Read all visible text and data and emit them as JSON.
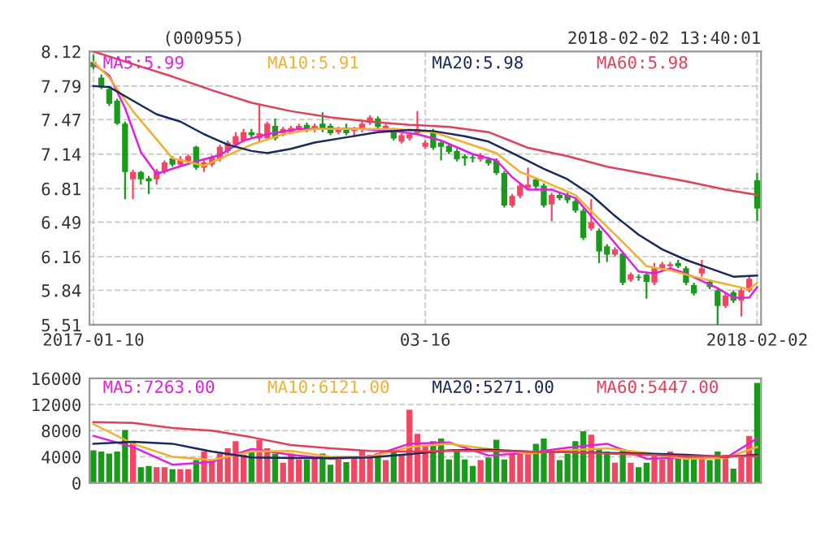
{
  "chart_data": [
    {
      "type": "candlestick",
      "title": "(000955)",
      "annotations": [
        "2018-02-02 13:40:01"
      ],
      "categories": [
        "2017-01-10",
        null,
        null,
        null,
        null,
        null,
        null,
        null,
        null,
        null,
        null,
        null,
        null,
        null,
        null,
        null,
        null,
        null,
        null,
        null,
        null,
        null,
        null,
        null,
        null,
        null,
        null,
        null,
        null,
        null,
        null,
        null,
        null,
        null,
        null,
        null,
        null,
        null,
        null,
        null,
        null,
        null,
        "03-16",
        null,
        null,
        null,
        null,
        null,
        null,
        null,
        null,
        null,
        null,
        null,
        null,
        null,
        null,
        null,
        null,
        null,
        null,
        null,
        null,
        null,
        null,
        null,
        null,
        null,
        null,
        null,
        null,
        null,
        null,
        null,
        null,
        null,
        null,
        null,
        null,
        null,
        null,
        null,
        null,
        null,
        "2018-02-02"
      ],
      "ohlc": [
        [
          8.02,
          8.09,
          7.95,
          7.97
        ],
        [
          7.87,
          7.9,
          7.76,
          7.78
        ],
        [
          7.76,
          7.78,
          7.6,
          7.62
        ],
        [
          7.65,
          7.67,
          7.42,
          7.43
        ],
        [
          7.43,
          7.45,
          6.71,
          6.97
        ],
        [
          6.9,
          6.99,
          6.71,
          6.97
        ],
        [
          6.97,
          6.98,
          6.85,
          6.9
        ],
        [
          6.91,
          6.93,
          6.76,
          6.88
        ],
        [
          6.9,
          7.0,
          6.85,
          6.98
        ],
        [
          6.97,
          7.08,
          6.95,
          7.06
        ],
        [
          7.1,
          7.12,
          7.02,
          7.04
        ],
        [
          7.04,
          7.12,
          7.02,
          7.09
        ],
        [
          7.07,
          7.14,
          7.05,
          7.12
        ],
        [
          7.21,
          7.22,
          6.99,
          7.01
        ],
        [
          7.01,
          7.08,
          6.97,
          7.06
        ],
        [
          7.04,
          7.13,
          7.02,
          7.11
        ],
        [
          7.09,
          7.23,
          7.07,
          7.21
        ],
        [
          7.17,
          7.27,
          7.15,
          7.25
        ],
        [
          7.23,
          7.35,
          7.21,
          7.31
        ],
        [
          7.27,
          7.38,
          7.25,
          7.35
        ],
        [
          7.35,
          7.38,
          7.3,
          7.32
        ],
        [
          7.29,
          7.62,
          7.25,
          7.34
        ],
        [
          7.29,
          7.45,
          7.27,
          7.43
        ],
        [
          7.41,
          7.48,
          7.27,
          7.29
        ],
        [
          7.34,
          7.4,
          7.31,
          7.38
        ],
        [
          7.35,
          7.41,
          7.33,
          7.39
        ],
        [
          7.37,
          7.43,
          7.35,
          7.41
        ],
        [
          7.42,
          7.44,
          7.35,
          7.37
        ],
        [
          7.37,
          7.43,
          7.35,
          7.41
        ],
        [
          7.43,
          7.54,
          7.35,
          7.38
        ],
        [
          7.41,
          7.43,
          7.32,
          7.34
        ],
        [
          7.35,
          7.4,
          7.33,
          7.38
        ],
        [
          7.39,
          7.43,
          7.32,
          7.34
        ],
        [
          7.36,
          7.4,
          7.3,
          7.38
        ],
        [
          7.37,
          7.45,
          7.35,
          7.43
        ],
        [
          7.44,
          7.51,
          7.42,
          7.49
        ],
        [
          7.48,
          7.5,
          7.38,
          7.4
        ],
        [
          7.37,
          7.43,
          7.35,
          7.41
        ],
        [
          7.37,
          7.39,
          7.27,
          7.29
        ],
        [
          7.26,
          7.34,
          7.24,
          7.32
        ],
        [
          7.29,
          7.34,
          7.27,
          7.33
        ],
        [
          7.34,
          7.55,
          7.32,
          7.38
        ],
        [
          7.21,
          7.27,
          7.19,
          7.25
        ],
        [
          7.36,
          7.38,
          7.18,
          7.2
        ],
        [
          7.25,
          7.27,
          7.08,
          7.21
        ],
        [
          7.22,
          7.24,
          7.14,
          7.16
        ],
        [
          7.17,
          7.19,
          7.07,
          7.09
        ],
        [
          7.12,
          7.14,
          7.03,
          7.1
        ],
        [
          7.11,
          7.13,
          7.06,
          7.1
        ],
        [
          7.09,
          7.15,
          7.07,
          7.13
        ],
        [
          7.09,
          7.11,
          7.03,
          7.05
        ],
        [
          7.08,
          7.1,
          6.94,
          6.96
        ],
        [
          6.96,
          6.98,
          6.63,
          6.65
        ],
        [
          6.65,
          6.76,
          6.63,
          6.74
        ],
        [
          6.74,
          6.86,
          6.72,
          6.84
        ],
        [
          6.82,
          7.01,
          6.8,
          6.85
        ],
        [
          6.9,
          6.92,
          6.8,
          6.83
        ],
        [
          6.84,
          6.86,
          6.63,
          6.65
        ],
        [
          6.66,
          6.77,
          6.5,
          6.75
        ],
        [
          6.75,
          6.77,
          6.7,
          6.72
        ],
        [
          6.75,
          6.77,
          6.67,
          6.7
        ],
        [
          6.69,
          6.71,
          6.58,
          6.6
        ],
        [
          6.6,
          6.62,
          6.32,
          6.34
        ],
        [
          6.43,
          6.71,
          6.41,
          6.49
        ],
        [
          6.41,
          6.43,
          6.1,
          6.21
        ],
        [
          6.26,
          6.28,
          6.11,
          6.18
        ],
        [
          6.18,
          6.25,
          6.16,
          6.23
        ],
        [
          6.19,
          6.21,
          5.89,
          5.91
        ],
        [
          5.94,
          6.01,
          5.92,
          5.99
        ],
        [
          5.97,
          5.99,
          5.93,
          5.96
        ],
        [
          5.99,
          6.01,
          5.76,
          5.92
        ],
        [
          5.91,
          6.1,
          5.89,
          6.05
        ],
        [
          6.05,
          6.11,
          6.03,
          6.09
        ],
        [
          6.07,
          6.11,
          6.04,
          6.09
        ],
        [
          6.1,
          6.13,
          6.05,
          6.07
        ],
        [
          6.05,
          6.07,
          5.89,
          5.91
        ],
        [
          5.89,
          5.91,
          5.79,
          5.81
        ],
        [
          6.0,
          6.13,
          5.97,
          6.05
        ],
        [
          5.92,
          5.94,
          5.85,
          5.87
        ],
        [
          5.84,
          5.86,
          5.51,
          5.69
        ],
        [
          5.69,
          5.81,
          5.67,
          5.79
        ],
        [
          5.82,
          5.84,
          5.72,
          5.74
        ],
        [
          5.74,
          5.86,
          5.59,
          5.84
        ],
        [
          5.84,
          5.97,
          5.82,
          5.95
        ],
        [
          6.89,
          6.96,
          6.5,
          6.62
        ]
      ],
      "colors": [
        "#1a9a1a",
        "#1a9a1a",
        "#1a9a1a",
        "#1a9a1a",
        "#1a9a1a",
        "#f04864",
        "#1a9a1a",
        "#1a9a1a",
        "#f04864",
        "#f04864",
        "#1a9a1a",
        "#f04864",
        "#f04864",
        "#1a9a1a",
        "#f04864",
        "#f04864",
        "#f04864",
        "#f04864",
        "#f04864",
        "#f04864",
        "#1a9a1a",
        "#f04864",
        "#f04864",
        "#1a9a1a",
        "#f04864",
        "#f04864",
        "#f04864",
        "#1a9a1a",
        "#f04864",
        "#1a9a1a",
        "#1a9a1a",
        "#f04864",
        "#1a9a1a",
        "#f04864",
        "#f04864",
        "#f04864",
        "#1a9a1a",
        "#f04864",
        "#1a9a1a",
        "#f04864",
        "#f04864",
        "#f04864",
        "#f04864",
        "#1a9a1a",
        "#1a9a1a",
        "#1a9a1a",
        "#1a9a1a",
        "#1a9a1a",
        "#1a9a1a",
        "#f04864",
        "#1a9a1a",
        "#1a9a1a",
        "#1a9a1a",
        "#f04864",
        "#f04864",
        "#f04864",
        "#1a9a1a",
        "#1a9a1a",
        "#f04864",
        "#1a9a1a",
        "#1a9a1a",
        "#1a9a1a",
        "#1a9a1a",
        "#f04864",
        "#1a9a1a",
        "#1a9a1a",
        "#f04864",
        "#1a9a1a",
        "#f04864",
        "#1a9a1a",
        "#1a9a1a",
        "#f04864",
        "#f04864",
        "#f04864",
        "#1a9a1a",
        "#1a9a1a",
        "#1a9a1a",
        "#f04864",
        "#1a9a1a",
        "#1a9a1a",
        "#f04864",
        "#1a9a1a",
        "#f04864",
        "#f04864",
        "#1a9a1a"
      ],
      "ylim": [
        5.51,
        8.12
      ],
      "yticks": [
        5.51,
        5.84,
        6.16,
        6.49,
        6.81,
        7.14,
        7.47,
        7.79,
        8.12
      ],
      "grid": true,
      "series": [
        {
          "name": "MA5:5.99",
          "type": "line",
          "color": "#e020e0",
          "values": [
            8.0,
            null,
            7.89,
            null,
            7.58,
            null,
            7.16,
            null,
            6.95,
            null,
            7.0,
            null,
            null,
            7.07,
            null,
            null,
            7.13,
            null,
            null,
            7.27,
            null,
            null,
            7.33,
            null,
            null,
            null,
            7.38,
            null,
            null,
            null,
            7.38,
            null,
            null,
            null,
            7.38,
            null,
            null,
            null,
            7.36,
            null,
            null,
            7.33,
            null,
            null,
            7.27,
            null,
            null,
            null,
            7.14,
            null,
            null,
            7.08,
            null,
            6.92,
            null,
            6.8,
            null,
            null,
            6.8,
            null,
            null,
            6.72,
            null,
            6.55,
            null,
            6.38,
            null,
            6.2,
            null,
            6.02,
            null,
            6.0,
            null,
            6.05,
            null,
            6.0,
            null,
            5.93,
            null,
            5.86,
            null,
            5.77,
            null,
            5.77,
            5.87
          ]
        },
        {
          "name": "MA10:5.91",
          "type": "line",
          "color": "#f0b030",
          "values": [
            8.02,
            null,
            7.87,
            null,
            null,
            7.55,
            null,
            null,
            null,
            null,
            7.1,
            null,
            null,
            null,
            7.03,
            null,
            null,
            7.13,
            null,
            null,
            7.23,
            null,
            null,
            null,
            7.33,
            null,
            null,
            null,
            7.38,
            null,
            null,
            null,
            null,
            7.38,
            null,
            null,
            null,
            null,
            7.38,
            null,
            null,
            null,
            null,
            7.35,
            null,
            null,
            null,
            7.25,
            null,
            null,
            null,
            7.15,
            null,
            null,
            6.97,
            null,
            null,
            6.88,
            null,
            null,
            null,
            6.75,
            null,
            null,
            6.52,
            null,
            null,
            6.3,
            null,
            null,
            6.07,
            null,
            null,
            6.03,
            null,
            null,
            5.97,
            null,
            null,
            null,
            5.9,
            null,
            null,
            5.85,
            5.91
          ]
        },
        {
          "name": "MA20:5.98",
          "type": "line",
          "color": "#1a2a5a",
          "values": [
            7.79,
            null,
            7.78,
            null,
            null,
            7.65,
            null,
            null,
            7.52,
            null,
            null,
            7.45,
            null,
            null,
            7.33,
            null,
            null,
            7.23,
            null,
            null,
            7.17,
            null,
            7.15,
            null,
            null,
            7.19,
            null,
            null,
            7.25,
            null,
            null,
            null,
            7.3,
            null,
            null,
            null,
            7.35,
            null,
            null,
            null,
            7.37,
            null,
            null,
            7.36,
            null,
            null,
            null,
            7.31,
            null,
            null,
            7.26,
            null,
            null,
            7.15,
            null,
            null,
            null,
            7.0,
            null,
            null,
            6.9,
            null,
            null,
            6.75,
            null,
            null,
            6.55,
            null,
            null,
            6.37,
            null,
            null,
            6.23,
            null,
            null,
            6.13,
            null,
            null,
            6.05,
            null,
            null,
            5.97,
            null,
            null,
            5.98
          ]
        },
        {
          "name": "MA60:5.98",
          "type": "line",
          "color": "#e0405a",
          "values": [
            8.12,
            null,
            null,
            null,
            null,
            8.0,
            null,
            null,
            null,
            null,
            7.88,
            null,
            null,
            null,
            null,
            7.75,
            null,
            null,
            null,
            null,
            7.63,
            null,
            null,
            null,
            null,
            7.55,
            null,
            null,
            null,
            null,
            7.49,
            null,
            null,
            null,
            null,
            7.45,
            null,
            null,
            null,
            null,
            7.42,
            null,
            null,
            null,
            null,
            7.4,
            null,
            null,
            null,
            null,
            7.35,
            null,
            null,
            null,
            null,
            7.2,
            null,
            null,
            null,
            null,
            7.12,
            null,
            null,
            null,
            null,
            7.02,
            null,
            null,
            null,
            null,
            6.95,
            null,
            null,
            null,
            null,
            6.88,
            null,
            null,
            null,
            null,
            6.8,
            null,
            null,
            null,
            6.75
          ]
        }
      ]
    },
    {
      "type": "bar",
      "tick_labels": "y",
      "categories": [
        null,
        null,
        null,
        null,
        null,
        null,
        null,
        null,
        null,
        null,
        null,
        null,
        null,
        null,
        null,
        null,
        null,
        null,
        null,
        null,
        null,
        null,
        null,
        null,
        null,
        null,
        null,
        null,
        null,
        null,
        null,
        null,
        null,
        null,
        null,
        null,
        null,
        null,
        null,
        null,
        null,
        null,
        null,
        null,
        null,
        null,
        null,
        null,
        null,
        null,
        null,
        null,
        null,
        null,
        null,
        null,
        null,
        null,
        null,
        null,
        null,
        null,
        null,
        null,
        null,
        null,
        null,
        null,
        null,
        null,
        null,
        null,
        null,
        null,
        null,
        null,
        null,
        null,
        null,
        null,
        null,
        null,
        null,
        null,
        null
      ],
      "values": [
        5000,
        4800,
        4500,
        4800,
        8100,
        6400,
        2400,
        2600,
        2400,
        2400,
        2100,
        2100,
        2100,
        3500,
        4800,
        3600,
        4500,
        5300,
        6400,
        4300,
        5000,
        6600,
        5300,
        4500,
        3100,
        4500,
        3600,
        3600,
        3900,
        4500,
        2800,
        3600,
        3200,
        3900,
        5000,
        4300,
        4500,
        3500,
        4800,
        4300,
        11200,
        7500,
        5600,
        6400,
        6800,
        3600,
        5000,
        3600,
        2600,
        3500,
        3900,
        6600,
        3600,
        4500,
        4500,
        4500,
        6000,
        6800,
        5000,
        3500,
        4500,
        6400,
        7900,
        7400,
        5300,
        4800,
        3100,
        5200,
        3100,
        2400,
        3100,
        4100,
        3600,
        4800,
        4100,
        3800,
        4100,
        4300,
        3500,
        4800,
        4300,
        2200,
        4100,
        7200,
        15300
      ],
      "colors": [
        "#1a9a1a",
        "#1a9a1a",
        "#1a9a1a",
        "#1a9a1a",
        "#1a9a1a",
        "#f04864",
        "#1a9a1a",
        "#1a9a1a",
        "#f04864",
        "#f04864",
        "#1a9a1a",
        "#f04864",
        "#f04864",
        "#1a9a1a",
        "#f04864",
        "#f04864",
        "#f04864",
        "#f04864",
        "#f04864",
        "#f04864",
        "#1a9a1a",
        "#f04864",
        "#f04864",
        "#1a9a1a",
        "#f04864",
        "#f04864",
        "#f04864",
        "#1a9a1a",
        "#f04864",
        "#1a9a1a",
        "#1a9a1a",
        "#f04864",
        "#1a9a1a",
        "#f04864",
        "#f04864",
        "#f04864",
        "#1a9a1a",
        "#f04864",
        "#1a9a1a",
        "#f04864",
        "#f04864",
        "#f04864",
        "#f04864",
        "#1a9a1a",
        "#1a9a1a",
        "#1a9a1a",
        "#1a9a1a",
        "#1a9a1a",
        "#1a9a1a",
        "#f04864",
        "#1a9a1a",
        "#1a9a1a",
        "#1a9a1a",
        "#f04864",
        "#f04864",
        "#f04864",
        "#1a9a1a",
        "#1a9a1a",
        "#f04864",
        "#1a9a1a",
        "#1a9a1a",
        "#1a9a1a",
        "#1a9a1a",
        "#f04864",
        "#1a9a1a",
        "#1a9a1a",
        "#f04864",
        "#1a9a1a",
        "#f04864",
        "#1a9a1a",
        "#1a9a1a",
        "#f04864",
        "#f04864",
        "#f04864",
        "#1a9a1a",
        "#1a9a1a",
        "#1a9a1a",
        "#f04864",
        "#1a9a1a",
        "#1a9a1a",
        "#f04864",
        "#1a9a1a",
        "#f04864",
        "#f04864",
        "#1a9a1a"
      ],
      "ylim": [
        0,
        16000
      ],
      "yticks": [
        0,
        4000,
        8000,
        12000,
        16000
      ],
      "grid": true,
      "series": [
        {
          "name": "MA5:7263.00",
          "type": "line",
          "color": "#e020e0",
          "values": [
            7200,
            null,
            null,
            null,
            null,
            5500,
            null,
            null,
            null,
            null,
            2800,
            null,
            null,
            null,
            null,
            3200,
            null,
            null,
            null,
            null,
            5200,
            null,
            null,
            null,
            null,
            4300,
            null,
            null,
            null,
            null,
            3700,
            null,
            null,
            null,
            null,
            4000,
            null,
            null,
            null,
            null,
            6000,
            null,
            null,
            null,
            null,
            6200,
            null,
            null,
            null,
            null,
            4200,
            null,
            null,
            null,
            null,
            4600,
            null,
            null,
            null,
            null,
            5400,
            null,
            null,
            null,
            null,
            6000,
            null,
            null,
            null,
            null,
            3700,
            null,
            null,
            null,
            null,
            3900,
            null,
            null,
            null,
            null,
            3800,
            null,
            null,
            null,
            6800
          ]
        },
        {
          "name": "MA10:6121.00",
          "type": "line",
          "color": "#f0b030",
          "values": [
            9000,
            null,
            null,
            null,
            null,
            6000,
            null,
            null,
            null,
            null,
            4000,
            null,
            null,
            null,
            null,
            3500,
            null,
            null,
            null,
            null,
            4800,
            null,
            null,
            null,
            null,
            4900,
            null,
            null,
            null,
            null,
            4000,
            null,
            null,
            null,
            null,
            4000,
            null,
            null,
            null,
            null,
            5500,
            null,
            null,
            null,
            null,
            6000,
            null,
            null,
            null,
            null,
            5200,
            null,
            null,
            null,
            null,
            4500,
            null,
            null,
            null,
            null,
            5000,
            null,
            null,
            null,
            null,
            5300,
            null,
            null,
            null,
            null,
            4600,
            null,
            null,
            null,
            null,
            3700,
            null,
            null,
            null,
            null,
            3800,
            null,
            null,
            null,
            5500
          ]
        },
        {
          "name": "MA20:5271.00",
          "type": "line",
          "color": "#1a2a5a",
          "values": [
            6000,
            null,
            null,
            null,
            null,
            6300,
            null,
            null,
            null,
            null,
            6000,
            null,
            null,
            null,
            null,
            4800,
            null,
            null,
            null,
            null,
            3900,
            null,
            null,
            null,
            null,
            3800,
            null,
            null,
            null,
            null,
            3800,
            null,
            null,
            null,
            null,
            3900,
            null,
            null,
            null,
            null,
            4400,
            null,
            null,
            null,
            null,
            5000,
            null,
            null,
            null,
            null,
            5100,
            null,
            null,
            null,
            null,
            4800,
            null,
            null,
            null,
            null,
            4700,
            null,
            null,
            null,
            null,
            4600,
            null,
            null,
            null,
            null,
            4500,
            null,
            null,
            null,
            null,
            4300,
            null,
            null,
            null,
            null,
            4000,
            null,
            null,
            null,
            4300
          ]
        },
        {
          "name": "MA60:5447.00",
          "type": "line",
          "color": "#e0405a",
          "values": [
            9300,
            null,
            null,
            null,
            null,
            9200,
            null,
            null,
            null,
            null,
            8400,
            null,
            null,
            null,
            null,
            8000,
            null,
            null,
            null,
            null,
            7000,
            null,
            null,
            null,
            null,
            5800,
            null,
            null,
            null,
            null,
            5300,
            null,
            null,
            null,
            null,
            4900,
            null,
            null,
            null,
            null,
            4800,
            null,
            null,
            null,
            null,
            4900,
            null,
            null,
            null,
            null,
            4900,
            null,
            null,
            null,
            null,
            4800,
            null,
            null,
            null,
            null,
            4700,
            null,
            null,
            null,
            null,
            4500,
            null,
            null,
            null,
            null,
            4300,
            null,
            null,
            null,
            null,
            4100,
            null,
            null,
            null,
            null,
            4100,
            null,
            null,
            null,
            4100
          ]
        }
      ]
    }
  ]
}
